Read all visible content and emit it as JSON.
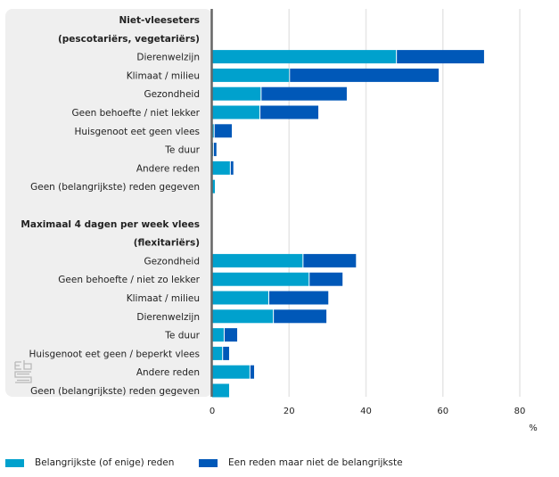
{
  "chart_data": {
    "type": "bar",
    "orientation": "horizontal",
    "stacked": true,
    "title": "",
    "xlabel": "",
    "unit_label": "%",
    "xlim": [
      0,
      80
    ],
    "xticks": [
      "0",
      "20",
      "40",
      "60",
      "80"
    ],
    "grid": true,
    "legend_position": "bottom-left",
    "colors": {
      "primary": "#00a1cd",
      "secondary": "#0058b8",
      "panel": "#efefef",
      "axis": "#666666",
      "grid": "#e6e6e6"
    },
    "series": [
      {
        "name": "Belangrijkste (of enige) reden"
      },
      {
        "name": "Een reden maar niet de belangrijkste"
      }
    ],
    "groups": [
      {
        "header": [
          "Niet-vleeseters",
          "(pescotariërs, vegetariërs)"
        ],
        "rows": [
          {
            "category": "Dierenwelzijn",
            "values": [
              47.8,
              22.9
            ]
          },
          {
            "category": "Klimaat / milieu",
            "values": [
              20.0,
              38.9
            ]
          },
          {
            "category": "Gezondheid",
            "values": [
              12.6,
              22.4
            ]
          },
          {
            "category": "Geen behoefte / niet lekker",
            "values": [
              12.3,
              15.3
            ]
          },
          {
            "category": "Huisgenoot eet geen vlees",
            "values": [
              0.4,
              4.7
            ]
          },
          {
            "category": "Te duur",
            "values": [
              0.2,
              0.9
            ]
          },
          {
            "category": "Andere reden",
            "values": [
              4.6,
              0.9
            ]
          },
          {
            "category": "Geen (belangrijkste) reden gegeven",
            "values": [
              0.7,
              0
            ]
          }
        ]
      },
      {
        "header": [
          "Maximaal 4 dagen per week vlees",
          "(flexitariërs)"
        ],
        "rows": [
          {
            "category": "Gezondheid",
            "values": [
              23.5,
              13.9
            ]
          },
          {
            "category": "Geen behoefte / niet zo lekker",
            "values": [
              25.1,
              8.8
            ]
          },
          {
            "category": "Klimaat / milieu",
            "values": [
              14.6,
              15.6
            ]
          },
          {
            "category": "Dierenwelzijn",
            "values": [
              15.8,
              13.9
            ]
          },
          {
            "category": "Te duur",
            "values": [
              3.0,
              3.5
            ]
          },
          {
            "category": "Huisgenoot eet geen / beperkt vlees",
            "values": [
              2.6,
              1.8
            ]
          },
          {
            "category": "Andere reden",
            "values": [
              9.7,
              1.2
            ]
          },
          {
            "category": "Geen (belangrijkste) reden gegeven",
            "values": [
              4.4,
              0
            ]
          }
        ]
      }
    ]
  },
  "logo": {
    "name": "cbs-logo"
  }
}
